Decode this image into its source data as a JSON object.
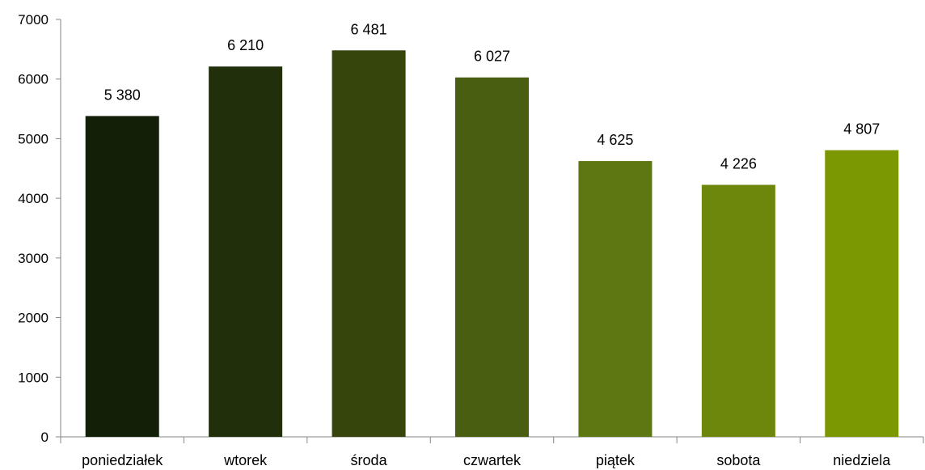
{
  "chart_data": {
    "type": "bar",
    "categories": [
      "poniedziałek",
      "wtorek",
      "środa",
      "czwartek",
      "piątek",
      "sobota",
      "niedziela"
    ],
    "values": [
      5380,
      6210,
      6481,
      6027,
      4625,
      4226,
      4807
    ],
    "data_labels": [
      "5 380",
      "6 210",
      "6 481",
      "6 027",
      "4 625",
      "4 226",
      "4 807"
    ],
    "y_ticks": [
      0,
      1000,
      2000,
      3000,
      4000,
      5000,
      6000,
      7000
    ],
    "ylim": [
      0,
      7000
    ],
    "grid": false,
    "legend": "none",
    "title": "",
    "xlabel": "",
    "ylabel": "",
    "bar_colors": [
      "#141f07",
      "#21300a",
      "#35450c",
      "#495e10",
      "#5d7712",
      "#6d860c",
      "#7b9702"
    ]
  }
}
